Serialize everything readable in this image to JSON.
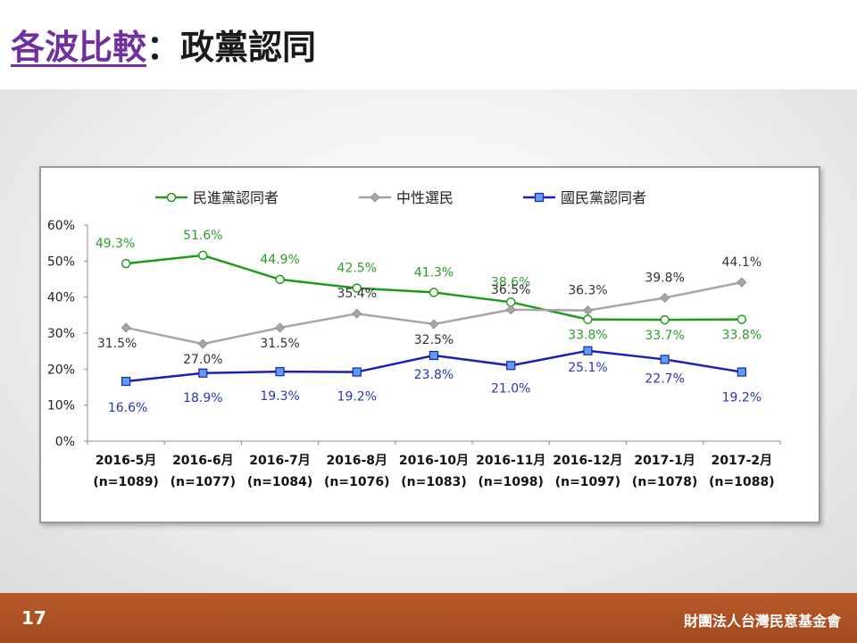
{
  "slide": {
    "title_lead": "各波比較",
    "title_sep": "：",
    "title_rest": "政黨認同",
    "page_number": "17",
    "organization": "財團法人台灣民意基金會"
  },
  "chart_data": {
    "type": "line",
    "title": "",
    "xlabel": "",
    "ylabel": "",
    "ylim": [
      0,
      60
    ],
    "yticks": [
      "0%",
      "10%",
      "20%",
      "30%",
      "40%",
      "50%",
      "60%"
    ],
    "categories": [
      [
        "2016-5月",
        "(n=1089)"
      ],
      [
        "2016-6月",
        "(n=1077)"
      ],
      [
        "2016-7月",
        "(n=1084)"
      ],
      [
        "2016-8月",
        "(n=1076)"
      ],
      [
        "2016-10月",
        "(n=1083)"
      ],
      [
        "2016-11月",
        "(n=1098)"
      ],
      [
        "2016-12月",
        "(n=1097)"
      ],
      [
        "2017-1月",
        "(n=1078)"
      ],
      [
        "2017-2月",
        "(n=1088)"
      ]
    ],
    "legend_position": "top",
    "grid": false,
    "series": [
      {
        "name": "民進黨認同者",
        "color": "#1f9a1f",
        "marker": "circle",
        "values": [
          49.3,
          51.6,
          44.9,
          42.5,
          41.3,
          38.6,
          33.8,
          33.7,
          33.8
        ],
        "labels": [
          "49.3%",
          "51.6%",
          "44.9%",
          "42.5%",
          "41.3%",
          "38.6%",
          "33.8%",
          "33.7%",
          "33.8%"
        ]
      },
      {
        "name": "中性選民",
        "color": "#a6a6a6",
        "marker": "diamond",
        "values": [
          31.5,
          27.0,
          31.5,
          35.4,
          32.5,
          36.5,
          36.3,
          39.8,
          44.1
        ],
        "labels": [
          "31.5%",
          "27.0%",
          "31.5%",
          "35.4%",
          "32.5%",
          "36.5%",
          "36.3%",
          "39.8%",
          "44.1%"
        ]
      },
      {
        "name": "國民黨認同者",
        "color": "#1f1fb4",
        "marker": "square",
        "values": [
          16.6,
          18.9,
          19.3,
          19.2,
          23.8,
          21.0,
          25.1,
          22.7,
          19.2
        ],
        "labels": [
          "16.6%",
          "18.9%",
          "19.3%",
          "19.2%",
          "23.8%",
          "21.0%",
          "25.1%",
          "22.7%",
          "19.2%"
        ]
      }
    ]
  }
}
